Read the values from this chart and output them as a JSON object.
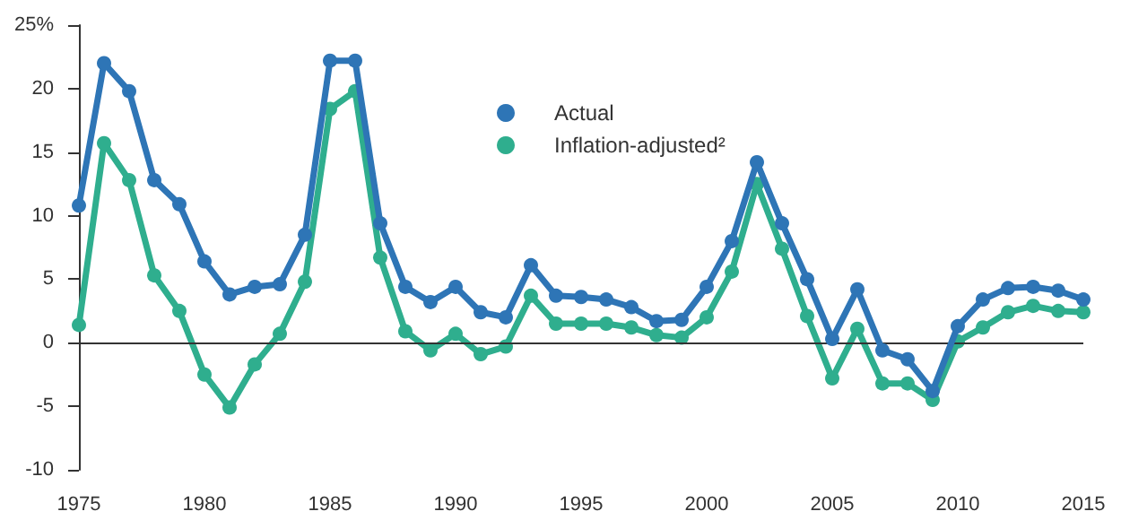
{
  "chart_data": {
    "type": "line",
    "x": [
      1975,
      1976,
      1977,
      1978,
      1979,
      1980,
      1981,
      1982,
      1983,
      1984,
      1985,
      1986,
      1987,
      1988,
      1989,
      1990,
      1991,
      1992,
      1993,
      1994,
      1995,
      1996,
      1997,
      1998,
      1999,
      2000,
      2001,
      2002,
      2003,
      2004,
      2005,
      2006,
      2007,
      2008,
      2009,
      2010,
      2011,
      2012,
      2013,
      2014,
      2015
    ],
    "series": [
      {
        "name": "Actual",
        "color": "#2e75b6",
        "values": [
          10.8,
          22,
          19.8,
          12.8,
          10.9,
          6.4,
          3.8,
          4.4,
          4.6,
          8.5,
          22.2,
          22.2,
          9.4,
          4.4,
          3.2,
          4.4,
          2.4,
          2.0,
          6.1,
          3.7,
          3.6,
          3.4,
          2.8,
          1.7,
          1.8,
          4.4,
          8.0,
          14.2,
          9.4,
          5.0,
          0.3,
          4.2,
          -0.6,
          -1.3,
          -3.8,
          1.3,
          3.4,
          4.3,
          4.4,
          4.1,
          3.4
        ]
      },
      {
        "name": "Inflation-adjusted²",
        "color": "#2fae8e",
        "values": [
          1.4,
          15.7,
          12.8,
          5.3,
          2.5,
          -2.5,
          -5.1,
          -1.7,
          0.7,
          4.8,
          18.4,
          19.8,
          6.7,
          0.9,
          -0.6,
          0.7,
          -0.9,
          -0.3,
          3.7,
          1.5,
          1.5,
          1.5,
          1.2,
          0.6,
          0.4,
          2.0,
          5.6,
          12.5,
          7.4,
          2.1,
          -2.8,
          1.1,
          -3.2,
          -3.2,
          -4.5,
          0.1,
          1.2,
          2.4,
          2.9,
          2.5,
          2.4
        ]
      }
    ],
    "xlim": [
      1975,
      2015
    ],
    "xticks": [
      1975,
      1980,
      1985,
      1990,
      1995,
      2000,
      2005,
      2010,
      2015
    ],
    "ylim": [
      -10,
      25
    ],
    "yticks": [
      -10,
      -5,
      0,
      5,
      10,
      15,
      20,
      {
        "value": 25,
        "label": "25%"
      }
    ],
    "ref_lines": [
      {
        "axis": "y",
        "value": 0,
        "color": "#333333"
      }
    ],
    "marker": "circle",
    "line_style": "solid",
    "grid": false,
    "legend": "top"
  }
}
